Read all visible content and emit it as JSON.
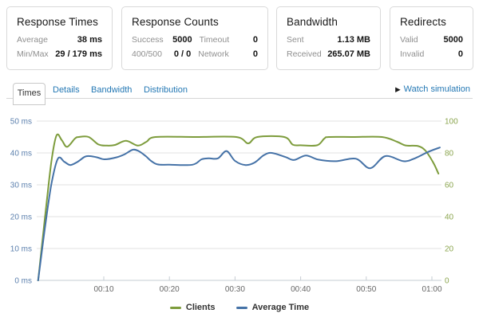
{
  "cards": [
    {
      "title": "Response Times",
      "rows": [
        {
          "cells": [
            {
              "label": "Average",
              "value": "38 ms"
            }
          ]
        },
        {
          "cells": [
            {
              "label": "Min/Max",
              "value": "29 / 179 ms"
            }
          ]
        }
      ]
    },
    {
      "title": "Response Counts",
      "rows": [
        {
          "cells": [
            {
              "label": "Success",
              "value": "5000"
            },
            {
              "label": "Timeout",
              "value": "0"
            }
          ]
        },
        {
          "cells": [
            {
              "label": "400/500",
              "value": "0 / 0"
            },
            {
              "label": "Network",
              "value": "0"
            }
          ]
        }
      ]
    },
    {
      "title": "Bandwidth",
      "rows": [
        {
          "cells": [
            {
              "label": "Sent",
              "value": "1.13 MB"
            }
          ]
        },
        {
          "cells": [
            {
              "label": "Received",
              "value": "265.07 MB"
            }
          ]
        }
      ]
    },
    {
      "title": "Redirects",
      "rows": [
        {
          "cells": [
            {
              "label": "Valid",
              "value": "5000"
            }
          ]
        },
        {
          "cells": [
            {
              "label": "Invalid",
              "value": "0"
            }
          ]
        }
      ]
    }
  ],
  "tabs": [
    {
      "label": "Times",
      "active": true
    },
    {
      "label": "Details",
      "active": false
    },
    {
      "label": "Bandwidth",
      "active": false
    },
    {
      "label": "Distribution",
      "active": false
    }
  ],
  "watch": {
    "icon": "play-icon",
    "glyph": "▶",
    "label": "Watch simulation"
  },
  "colors": {
    "link_blue": "#2478b4",
    "grid": "#e1e1e1",
    "axis_line": "#c6ccd3",
    "x_label": "#666666"
  },
  "chart_data": {
    "type": "line",
    "title": "",
    "grid": true,
    "legend_position": "bottom-center",
    "x_axis": {
      "unit": "mm:ss elapsed",
      "range_seconds": [
        0,
        61.3
      ],
      "ticks": [
        {
          "t": 10,
          "label": "00:10"
        },
        {
          "t": 20,
          "label": "00:20"
        },
        {
          "t": 30,
          "label": "00:30"
        },
        {
          "t": 40,
          "label": "00:40"
        },
        {
          "t": 50,
          "label": "00:50"
        },
        {
          "t": 60,
          "label": "01:00"
        }
      ]
    },
    "y_axis_left": {
      "range": [
        0,
        50
      ],
      "color": "#5d81ae",
      "ticks": [
        {
          "v": 50,
          "label": "50 ms"
        },
        {
          "v": 40,
          "label": "40 ms"
        },
        {
          "v": 30,
          "label": "30 ms"
        },
        {
          "v": 20,
          "label": "20 ms"
        },
        {
          "v": 10,
          "label": "10 ms"
        },
        {
          "v": 0,
          "label": "0 ms"
        }
      ]
    },
    "y_axis_right": {
      "range": [
        0,
        100
      ],
      "color": "#8ba54f",
      "ticks": [
        {
          "v": 100,
          "label": "100"
        },
        {
          "v": 80,
          "label": "80"
        },
        {
          "v": 60,
          "label": "60"
        },
        {
          "v": 40,
          "label": "40"
        },
        {
          "v": 20,
          "label": "20"
        },
        {
          "v": 0,
          "label": "0"
        }
      ]
    },
    "series": [
      {
        "name": "Clients",
        "axis": "right",
        "color": "#7d9c3c",
        "points": [
          [
            0,
            0
          ],
          [
            1,
            38
          ],
          [
            2,
            74
          ],
          [
            2.8,
            91
          ],
          [
            3.6,
            88
          ],
          [
            4.4,
            83.8
          ],
          [
            5.6,
            89
          ],
          [
            6.2,
            90
          ],
          [
            7.7,
            90
          ],
          [
            9.2,
            85.3
          ],
          [
            10.5,
            84.6
          ],
          [
            11.7,
            85
          ],
          [
            13.4,
            87.6
          ],
          [
            15.2,
            84.6
          ],
          [
            16.5,
            87
          ],
          [
            17.9,
            90
          ],
          [
            24,
            90
          ],
          [
            30.2,
            90
          ],
          [
            32,
            86
          ],
          [
            33.4,
            90
          ],
          [
            37.5,
            90
          ],
          [
            38.8,
            85.2
          ],
          [
            40,
            84.8
          ],
          [
            42.5,
            84.8
          ],
          [
            43.6,
            89
          ],
          [
            44.3,
            90
          ],
          [
            48,
            90
          ],
          [
            52.4,
            90
          ],
          [
            54.7,
            87
          ],
          [
            56,
            84.7
          ],
          [
            57.9,
            84.3
          ],
          [
            59,
            81.5
          ],
          [
            60.2,
            74
          ],
          [
            61,
            67
          ]
        ]
      },
      {
        "name": "Average Time",
        "axis": "left",
        "color": "#4572a7",
        "points": [
          [
            0,
            0
          ],
          [
            1,
            16
          ],
          [
            2,
            30
          ],
          [
            3,
            38.2
          ],
          [
            4,
            37.2
          ],
          [
            4.9,
            36.2
          ],
          [
            6,
            37.2
          ],
          [
            7.1,
            38.8
          ],
          [
            7.9,
            39
          ],
          [
            9,
            38.6
          ],
          [
            10.1,
            38
          ],
          [
            11.9,
            38.6
          ],
          [
            13.2,
            39.6
          ],
          [
            14.4,
            41
          ],
          [
            15.3,
            40.6
          ],
          [
            16.4,
            39
          ],
          [
            17.2,
            37.5
          ],
          [
            18.2,
            36.4
          ],
          [
            20,
            36.3
          ],
          [
            23.5,
            36.3
          ],
          [
            24.9,
            38
          ],
          [
            26,
            38.3
          ],
          [
            27.4,
            38.3
          ],
          [
            28.7,
            40.6
          ],
          [
            30,
            37.5
          ],
          [
            31.6,
            36.2
          ],
          [
            33,
            37
          ],
          [
            34.4,
            39.3
          ],
          [
            35.6,
            40
          ],
          [
            37.7,
            38.7
          ],
          [
            39,
            37.8
          ],
          [
            40.8,
            39.2
          ],
          [
            42.7,
            37.9
          ],
          [
            45.4,
            37.4
          ],
          [
            48.4,
            38.2
          ],
          [
            50.6,
            35.2
          ],
          [
            52.9,
            39
          ],
          [
            55.7,
            37.4
          ],
          [
            57.5,
            38.4
          ],
          [
            59.4,
            40.3
          ],
          [
            61.2,
            41.7
          ]
        ]
      }
    ]
  }
}
